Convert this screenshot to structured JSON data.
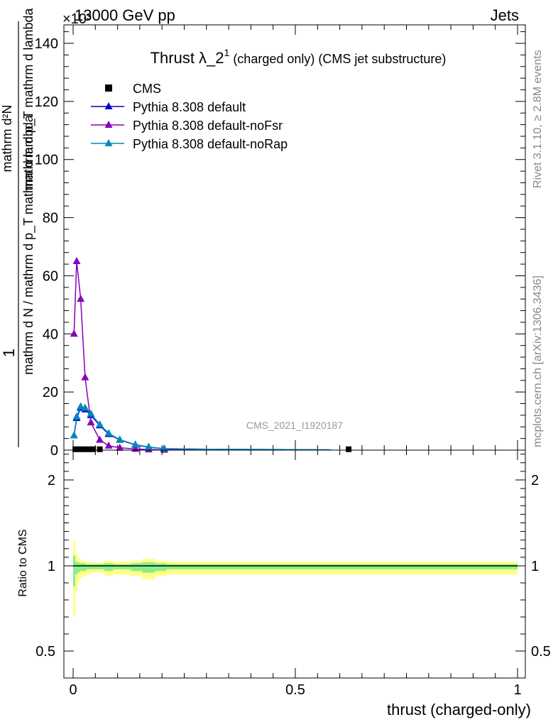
{
  "header": {
    "left": "13000 GeV pp",
    "right": "Jets",
    "exponent": "×10³"
  },
  "side_texts": {
    "rivet": "Rivet 3.1.10, ≥ 2.8M events",
    "mcplots": "mcplots.cern.ch [arXiv:1306.3436]"
  },
  "watermark": "CMS_2021_I1920187",
  "chart_data": [
    {
      "type": "line",
      "title": "Thrust λ_2¹ (charged only) (CMS jet substructure)",
      "title_parts": {
        "main": "Thrust λ_2",
        "sup": "1",
        "rest": " (charged only) (CMS jet substructure)"
      },
      "ylabel_num": "1",
      "ylabel_den": "mathrm d N / mathrm d p_T mathrm d lambda",
      "ylabel_num2": "mathrm d²N",
      "ylabel_den2": "mathrm d p_T mathrm d lambda",
      "xlim": [
        0,
        1
      ],
      "ylim": [
        0,
        146
      ],
      "yticks": [
        0,
        20,
        40,
        60,
        80,
        100,
        120,
        140
      ],
      "legend_position": "top-left",
      "series": [
        {
          "name": "CMS",
          "color": "#000000",
          "marker": "square",
          "x": [
            0.005,
            0.015,
            0.025,
            0.035,
            0.045,
            0.06,
            0.62
          ],
          "y": [
            0.3,
            0.3,
            0.3,
            0.3,
            0.3,
            0.3,
            0.3
          ]
        },
        {
          "name": "Pythia 8.308 default",
          "color": "#0000cc",
          "marker": "triangle",
          "x": [
            0.002,
            0.008,
            0.017,
            0.027,
            0.04,
            0.06,
            0.08,
            0.105,
            0.14,
            0.17,
            0.205,
            0.3,
            0.45,
            0.58
          ],
          "y": [
            5,
            11,
            14.5,
            14,
            12,
            8.5,
            5.5,
            3.5,
            1.8,
            1.0,
            0.5,
            0.3,
            0.2,
            0.1
          ]
        },
        {
          "name": "Pythia 8.308 default-noFsr",
          "color": "#8800bb",
          "marker": "triangle",
          "x": [
            0.002,
            0.008,
            0.017,
            0.027,
            0.04,
            0.06,
            0.08,
            0.105,
            0.14,
            0.17,
            0.205,
            0.3,
            0.45
          ],
          "y": [
            40,
            65,
            52,
            25,
            9.5,
            3.5,
            1.5,
            0.8,
            0.4,
            0.2,
            0.1,
            0.1,
            0.1
          ]
        },
        {
          "name": "Pythia 8.308 default-noRap",
          "color": "#0088bb",
          "marker": "triangle",
          "x": [
            0.002,
            0.008,
            0.017,
            0.027,
            0.04,
            0.06,
            0.08,
            0.105,
            0.14,
            0.17,
            0.205,
            0.3,
            0.45,
            0.58
          ],
          "y": [
            5,
            11.5,
            15,
            14.5,
            12.5,
            8.8,
            5.8,
            3.6,
            1.9,
            1.1,
            0.5,
            0.3,
            0.2,
            0.1
          ]
        }
      ]
    },
    {
      "type": "line",
      "xlabel": "thrust (charged-only)",
      "ylabel": "Ratio to CMS",
      "xlim": [
        0,
        1
      ],
      "ylim": [
        0.41,
        2.35
      ],
      "yticks": [
        0.5,
        1,
        2
      ],
      "xticks": [
        0,
        0.5,
        1
      ],
      "ratio_line": 1,
      "bands": {
        "edges": [
          0,
          0.005,
          0.01,
          0.015,
          0.02,
          0.03,
          0.04,
          0.07,
          0.09,
          0.11,
          0.13,
          0.155,
          0.185,
          0.21,
          0.25,
          1.0
        ],
        "yellow_half": [
          0.3,
          0.15,
          0.1,
          0.07,
          0.06,
          0.05,
          0.04,
          0.06,
          0.05,
          0.05,
          0.06,
          0.08,
          0.06,
          0.05,
          0.05
        ],
        "green_half": [
          0.12,
          0.05,
          0.04,
          0.03,
          0.03,
          0.02,
          0.02,
          0.03,
          0.02,
          0.02,
          0.03,
          0.04,
          0.03,
          0.02,
          0.02
        ]
      },
      "yellow_color": "#ffff88",
      "green_color": "#88ee88"
    }
  ]
}
